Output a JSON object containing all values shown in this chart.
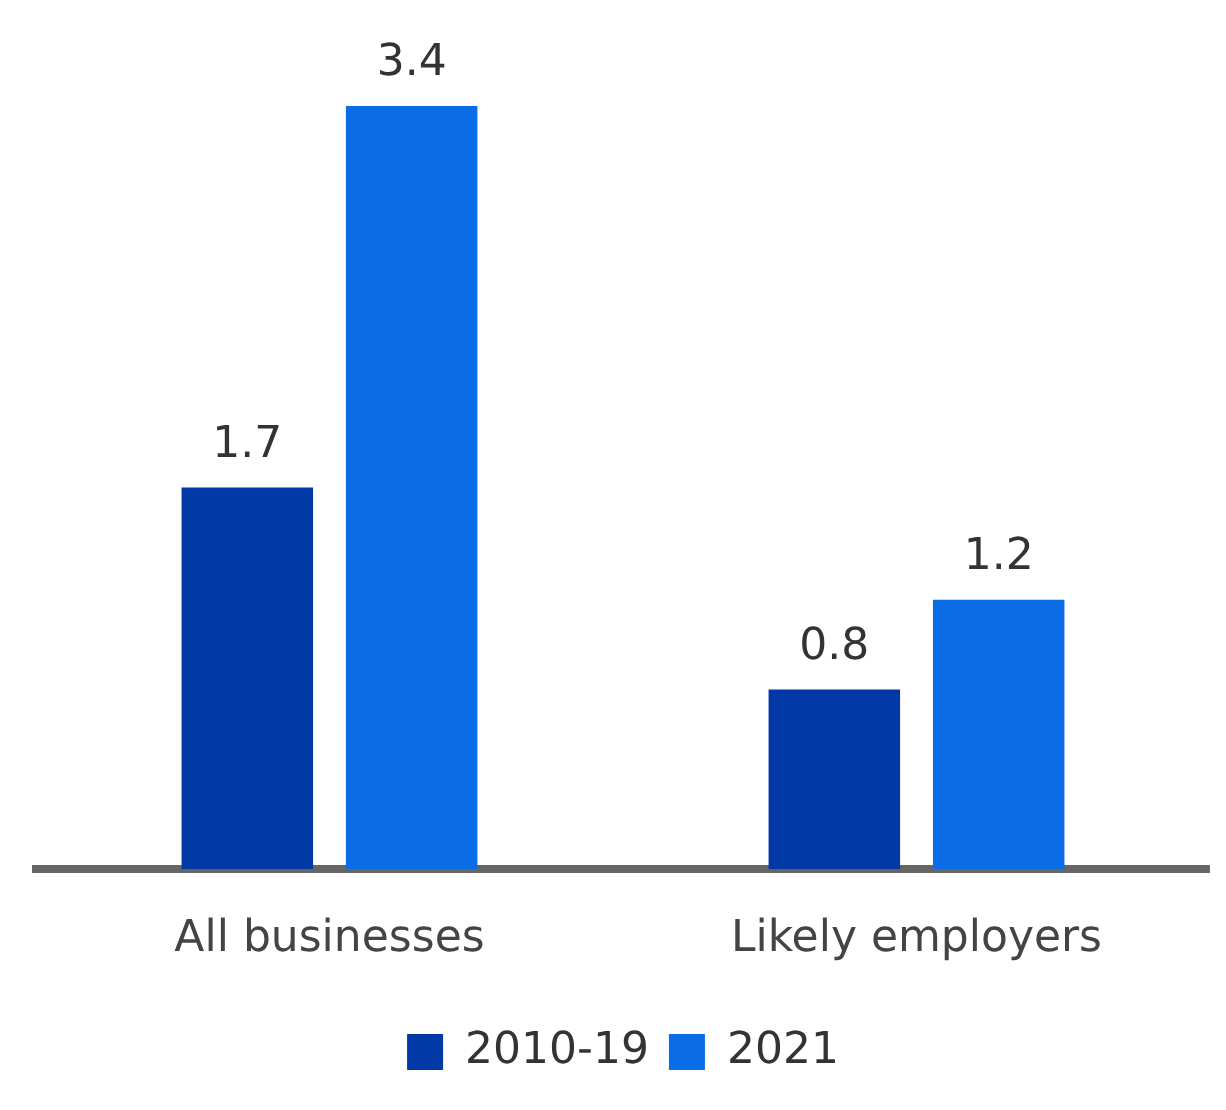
{
  "chart_data": {
    "type": "bar",
    "categories": [
      "All businesses",
      "Likely employers"
    ],
    "series": [
      {
        "name": "2010-19",
        "color": "#0039a6",
        "values": [
          1.7,
          0.8
        ]
      },
      {
        "name": "2021",
        "color": "#0a6de6",
        "values": [
          3.4,
          1.2
        ]
      }
    ],
    "data_labels": true,
    "legend": "bottom",
    "grid": false
  }
}
